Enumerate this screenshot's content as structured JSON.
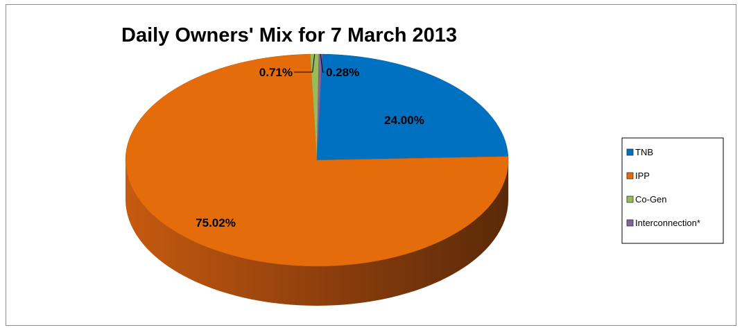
{
  "chart_data": {
    "type": "pie",
    "title": "Daily Owners' Mix for 7 March 2013",
    "slices": [
      {
        "name": "TNB",
        "value": 24.0,
        "label": "24.00%",
        "color": "#0070c0"
      },
      {
        "name": "IPP",
        "value": 75.02,
        "label": "75.02%",
        "color": "#e46c0a"
      },
      {
        "name": "Co-Gen",
        "value": 0.71,
        "label": "0.71%",
        "color": "#9bbb59"
      },
      {
        "name": "Interconnection*",
        "value": 0.28,
        "label": "0.28%",
        "color": "#8064a2"
      }
    ],
    "legend_placement": "right",
    "style": "3d-pie"
  }
}
